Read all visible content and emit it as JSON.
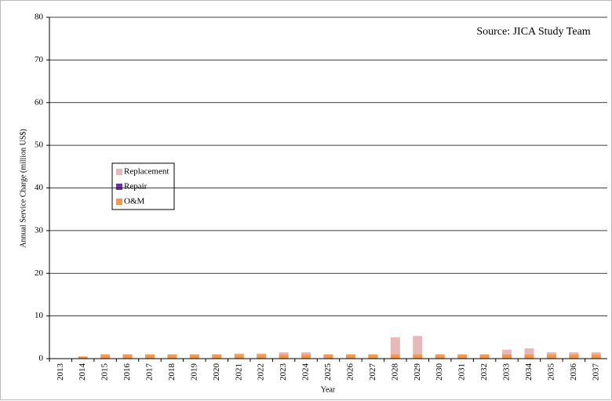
{
  "chart_data": {
    "type": "stacked_bar",
    "y_label": "Annual Service Charge (million US$)",
    "x_label": "Year",
    "annotation": "Source: JICA Study Team",
    "categories": [
      "2013",
      "2014",
      "2015",
      "2016",
      "2017",
      "2018",
      "2019",
      "2020",
      "2021",
      "2022",
      "2023",
      "2024",
      "2025",
      "2026",
      "2027",
      "2028",
      "2029",
      "2030",
      "2031",
      "2032",
      "2033",
      "2034",
      "2035",
      "2036",
      "2037"
    ],
    "series": [
      {
        "name": "O&M",
        "color": "#f79646",
        "values": [
          0,
          0.5,
          1,
          1,
          1,
          1,
          1,
          1,
          1,
          1,
          1,
          1,
          1,
          1,
          1,
          1,
          1,
          1,
          1,
          1,
          1,
          1,
          1,
          1,
          1
        ]
      },
      {
        "name": "Repair",
        "color": "#7030a0",
        "values": [
          0,
          0,
          0,
          0,
          0,
          0,
          0,
          0,
          0,
          0,
          0,
          0,
          0,
          0,
          0,
          0,
          0,
          0,
          0,
          0,
          0,
          0,
          0,
          0,
          0
        ]
      },
      {
        "name": "Replacement",
        "color": "#e6b8b7",
        "values": [
          0,
          0,
          0,
          0,
          0,
          0,
          0,
          0,
          0.2,
          0.2,
          0.5,
          0.5,
          0,
          0,
          0,
          4,
          4.3,
          0,
          0,
          0,
          1.1,
          1.4,
          0.5,
          0.5,
          0.5
        ]
      }
    ],
    "ylim": [
      0,
      80
    ],
    "yticks": [
      0,
      10,
      20,
      30,
      40,
      50,
      60,
      70,
      80
    ],
    "grid": true
  }
}
